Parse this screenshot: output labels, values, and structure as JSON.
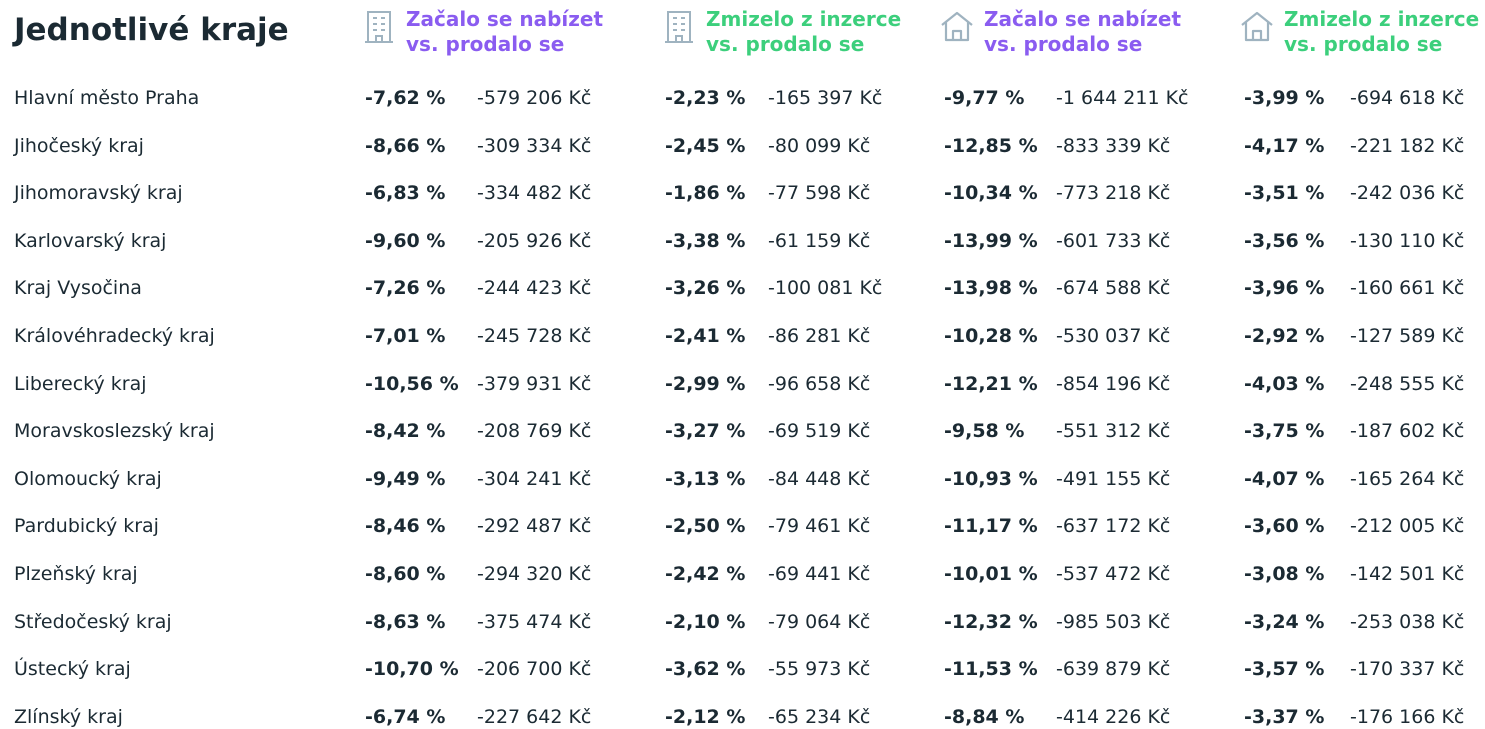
{
  "title": "Jednotlivé kraje",
  "headers": [
    {
      "lines": [
        "Začalo se nabízet",
        "vs. prodalo se"
      ]
    },
    {
      "lines": [
        "Zmizelo z inzerce",
        "vs. prodalo se"
      ]
    },
    {
      "lines": [
        "Začalo se nabízet",
        "vs. prodalo se"
      ]
    },
    {
      "lines": [
        "Zmizelo z inzerce",
        "vs. prodalo se"
      ]
    }
  ],
  "table": {
    "rows": [
      [
        "Hlavní město Praha",
        "-7,62 %",
        "-579 206 Kč",
        "-2,23 %",
        "-165 397 Kč",
        "-9,77 %",
        "-1 644 211 Kč",
        "-3,99 %",
        "-694 618 Kč"
      ],
      [
        "Jihočeský kraj",
        "-8,66 %",
        "-309 334 Kč",
        "-2,45 %",
        "-80 099 Kč",
        "-12,85 %",
        "-833 339 Kč",
        "-4,17 %",
        "-221 182 Kč"
      ],
      [
        "Jihomoravský kraj",
        "-6,83 %",
        "-334 482 Kč",
        "-1,86 %",
        "-77 598 Kč",
        "-10,34 %",
        "-773 218 Kč",
        "-3,51 %",
        "-242 036 Kč"
      ],
      [
        "Karlovarský kraj",
        "-9,60 %",
        "-205 926 Kč",
        "-3,38 %",
        "-61 159 Kč",
        "-13,99 %",
        "-601 733 Kč",
        "-3,56 %",
        "-130 110 Kč"
      ],
      [
        "Kraj Vysočina",
        "-7,26 %",
        "-244 423 Kč",
        "-3,26 %",
        "-100 081 Kč",
        "-13,98 %",
        "-674 588 Kč",
        "-3,96 %",
        "-160 661 Kč"
      ],
      [
        "Královéhradecký kraj",
        "-7,01 %",
        "-245 728 Kč",
        "-2,41 %",
        "-86 281 Kč",
        "-10,28 %",
        "-530 037 Kč",
        "-2,92 %",
        "-127 589 Kč"
      ],
      [
        "Liberecký kraj",
        "-10,56 %",
        "-379 931 Kč",
        "-2,99 %",
        "-96 658 Kč",
        "-12,21 %",
        "-854 196 Kč",
        "-4,03 %",
        "-248 555 Kč"
      ],
      [
        "Moravskoslezský kraj",
        "-8,42 %",
        "-208 769 Kč",
        "-3,27 %",
        "-69 519 Kč",
        "-9,58 %",
        "-551 312 Kč",
        "-3,75 %",
        "-187 602 Kč"
      ],
      [
        "Olomoucký kraj",
        "-9,49 %",
        "-304 241 Kč",
        "-3,13 %",
        "-84 448 Kč",
        "-10,93 %",
        "-491 155 Kč",
        "-4,07 %",
        "-165 264 Kč"
      ],
      [
        "Pardubický kraj",
        "-8,46 %",
        "-292 487 Kč",
        "-2,50 %",
        "-79 461 Kč",
        "-11,17 %",
        "-637 172 Kč",
        "-3,60 %",
        "-212 005 Kč"
      ],
      [
        "Plzeňský kraj",
        "-8,60 %",
        "-294 320 Kč",
        "-2,42 %",
        "-69 441 Kč",
        "-10,01 %",
        "-537 472 Kč",
        "-3,08 %",
        "-142 501 Kč"
      ],
      [
        "Středočeský kraj",
        "-8,63 %",
        "-375 474 Kč",
        "-2,10 %",
        "-79 064 Kč",
        "-12,32 %",
        "-985 503 Kč",
        "-3,24 %",
        "-253 038 Kč"
      ],
      [
        "Ústecký kraj",
        "-10,70 %",
        "-206 700 Kč",
        "-3,62 %",
        "-55 973 Kč",
        "-11,53 %",
        "-639 879 Kč",
        "-3,57 %",
        "-170 337 Kč"
      ],
      [
        "Zlínský kraj",
        "-6,74 %",
        "-227 642 Kč",
        "-2,12 %",
        "-65 234 Kč",
        "-8,84 %",
        "-414 226 Kč",
        "-3,37 %",
        "-176 166 Kč"
      ]
    ]
  }
}
